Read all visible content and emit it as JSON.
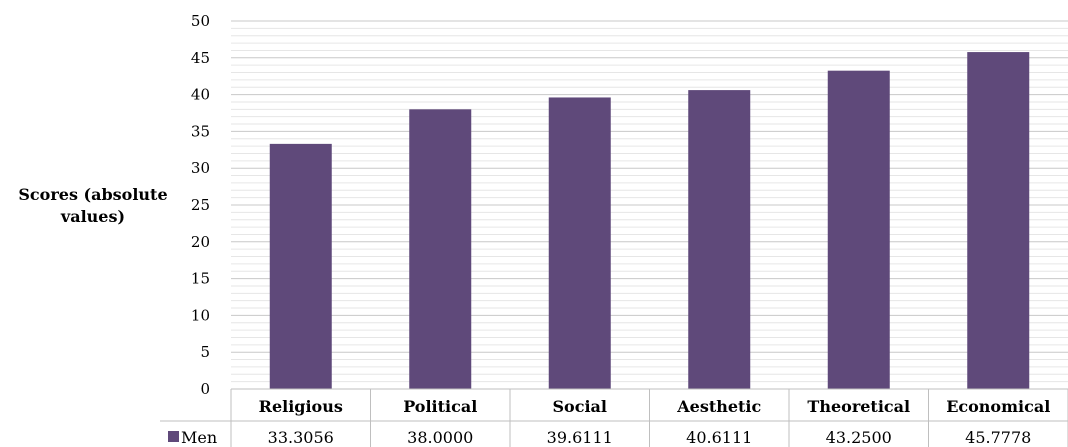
{
  "chart_data": {
    "type": "bar",
    "title": "",
    "xlabel": "",
    "ylabel": "Scores (absolute values)",
    "ylabel_lines": [
      "Scores (absolute",
      "values)"
    ],
    "ylim": [
      0,
      50
    ],
    "yticks": [
      0,
      5,
      10,
      15,
      20,
      25,
      30,
      35,
      40,
      45,
      50
    ],
    "minor_grid_step": 1,
    "grid": true,
    "categories": [
      "Religious",
      "Political",
      "Social",
      "Aesthetic",
      "Theoretical",
      "Economical"
    ],
    "series": [
      {
        "name": "Men",
        "color": "#5f497a",
        "values": [
          33.3056,
          38.0,
          39.6111,
          40.6111,
          43.25,
          45.7778
        ],
        "value_labels": [
          "33.3056",
          "38.0000",
          "39.6111",
          "40.6111",
          "43.2500",
          "45.7778"
        ]
      }
    ],
    "data_table": true
  }
}
